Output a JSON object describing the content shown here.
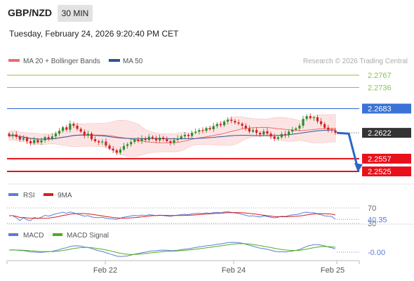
{
  "header": {
    "symbol": "GBP/NZD",
    "timeframe": "30 MIN",
    "datetime": "Tuesday, February 24, 2026 9:20:40 PM CET"
  },
  "credit": "Research © 2026 Trading Central",
  "colors": {
    "up_candle": "#2e8b2e",
    "down_candle": "#d42020",
    "ma20": "#f06b6b",
    "bollinger_fill": "#fde0e0",
    "ma50": "#2f5597",
    "resistance_green": "#8bc34a",
    "pivot_blue": "#3a72d8",
    "support_red": "#e8101a",
    "last_price": "#333333",
    "rsi": "#5a7bd8",
    "rsi_ma": "#d42020",
    "macd": "#5a7bd8",
    "macd_signal": "#4caf1a"
  },
  "chart_data": [
    {
      "type": "candlestick",
      "legend": [
        "MA 20 + Bollinger Bands",
        "MA 50"
      ],
      "ylim": [
        2.2485,
        2.2785
      ],
      "levels": [
        {
          "value": 2.2767,
          "label": "2.2767",
          "kind": "resistance"
        },
        {
          "value": 2.2736,
          "label": "2.2736",
          "kind": "resistance"
        },
        {
          "value": 2.2683,
          "label": "2.2683",
          "kind": "pivot"
        },
        {
          "value": 2.2622,
          "label": "2.2622",
          "kind": "last"
        },
        {
          "value": 2.2557,
          "label": "2.2557",
          "kind": "support"
        },
        {
          "value": 2.2525,
          "label": "2.2525",
          "kind": "support"
        }
      ],
      "forecast": [
        2.2622,
        2.262,
        2.2525
      ],
      "last_price": 2.2622,
      "x_ticks": [
        "Feb 22",
        "Feb 24",
        "Feb 25"
      ],
      "close": [
        2.2614,
        2.2618,
        2.2612,
        2.2605,
        2.2609,
        2.2601,
        2.2596,
        2.2604,
        2.2598,
        2.2603,
        2.2611,
        2.2607,
        2.2613,
        2.262,
        2.2627,
        2.2636,
        2.263,
        2.2645,
        2.264,
        2.2632,
        2.2625,
        2.2615,
        2.262,
        2.2606,
        2.2601,
        2.2598,
        2.26,
        2.259,
        2.2582,
        2.2578,
        2.2572,
        2.258,
        2.2589,
        2.2593,
        2.2599,
        2.2605,
        2.2601,
        2.2608,
        2.2604,
        2.2612,
        2.2609,
        2.2603,
        2.261,
        2.2606,
        2.2601,
        2.2597,
        2.2604,
        2.2608,
        2.2613,
        2.2617,
        2.2614,
        2.2622,
        2.2625,
        2.2629,
        2.2627,
        2.2634,
        2.2631,
        2.2639,
        2.2644,
        2.2641,
        2.265,
        2.2655,
        2.2652,
        2.2648,
        2.2645,
        2.264,
        2.2633,
        2.2625,
        2.2629,
        2.2622,
        2.2618,
        2.2626,
        2.262,
        2.2613,
        2.2607,
        2.2611,
        2.2619,
        2.2616,
        2.2625,
        2.263,
        2.2633,
        2.264,
        2.2657,
        2.2664,
        2.2659,
        2.2661,
        2.2651,
        2.2644,
        2.2635,
        2.263,
        2.2628,
        2.2622
      ]
    },
    {
      "type": "line",
      "legend": [
        "RSI",
        "9MA"
      ],
      "ylim": [
        30,
        70
      ],
      "levels": [
        {
          "value": 70,
          "label": "70"
        },
        {
          "value": 30,
          "label": "30"
        }
      ],
      "last_value": 40.35,
      "last_label": "40.35"
    },
    {
      "type": "line",
      "legend": [
        "MACD",
        "MACD Signal"
      ],
      "last_value": 0.0,
      "last_label": "-0.00"
    }
  ]
}
